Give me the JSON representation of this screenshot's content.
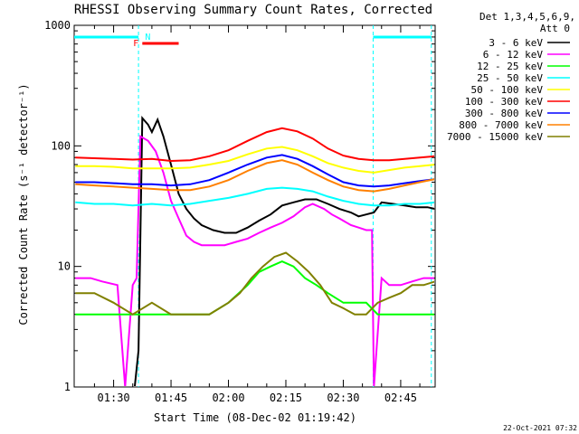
{
  "chart_data": {
    "type": "line",
    "title": "RHESSI Observing Summary Count Rates, Corrected",
    "xlabel": "Start Time (08-Dec-02 01:19:42)",
    "ylabel": "Corrected Count Rate (s⁻¹ detector⁻¹)",
    "yscale": "log",
    "ylim": [
      1,
      1000
    ],
    "xlim_minutes": [
      79.7,
      133.0
    ],
    "x_ticks": [
      {
        "minute": 90,
        "label": "01:30"
      },
      {
        "minute": 105,
        "label": "01:45"
      },
      {
        "minute": 120,
        "label": "02:00"
      },
      {
        "minute": 135,
        "label": "02:15"
      },
      {
        "minute": 150,
        "label": "02:30"
      },
      {
        "minute": 165,
        "label": "02:45"
      }
    ],
    "y_ticks": [
      {
        "value": 1,
        "label": "1"
      },
      {
        "value": 10,
        "label": "10"
      },
      {
        "value": 100,
        "label": "100"
      },
      {
        "value": 1000,
        "label": "1000"
      }
    ],
    "legend_header": [
      "Det 1,3,4,5,6,9,",
      "Att 0"
    ],
    "legend_position": "right",
    "timestamp": "22-Oct-2021 07:32",
    "flags": [
      {
        "label": "F",
        "color": "#ff0000"
      },
      {
        "label": "N",
        "color": "#00ffff"
      }
    ],
    "series": [
      {
        "name": "3 - 6 keV",
        "color": "#000000",
        "points": [
          [
            95.5,
            1
          ],
          [
            96.5,
            2
          ],
          [
            97.5,
            170
          ],
          [
            99,
            150
          ],
          [
            100,
            130
          ],
          [
            101.5,
            165
          ],
          [
            103,
            120
          ],
          [
            105,
            70
          ],
          [
            107,
            40
          ],
          [
            109,
            30
          ],
          [
            111,
            25
          ],
          [
            113,
            22
          ],
          [
            116,
            20
          ],
          [
            119,
            19
          ],
          [
            122,
            19
          ],
          [
            125,
            21
          ],
          [
            128,
            24
          ],
          [
            131,
            27
          ],
          [
            134,
            32
          ],
          [
            137,
            34
          ],
          [
            140,
            36
          ],
          [
            143,
            36
          ],
          [
            146,
            33
          ],
          [
            149,
            30
          ],
          [
            152,
            28
          ],
          [
            154,
            26
          ],
          [
            156,
            27
          ],
          [
            158,
            28
          ],
          [
            160,
            34
          ],
          [
            163,
            33
          ],
          [
            166,
            32
          ],
          [
            169,
            31
          ],
          [
            172,
            31
          ],
          [
            174,
            30
          ]
        ]
      },
      {
        "name": "6 - 12 keV",
        "color": "#ff00ff",
        "points": [
          [
            80,
            8
          ],
          [
            84,
            8
          ],
          [
            87,
            7.5
          ],
          [
            91,
            7
          ],
          [
            93,
            1
          ],
          [
            95,
            7
          ],
          [
            96,
            8
          ],
          [
            97,
            120
          ],
          [
            99,
            110
          ],
          [
            101,
            90
          ],
          [
            103,
            60
          ],
          [
            105,
            35
          ],
          [
            107,
            25
          ],
          [
            109,
            18
          ],
          [
            111,
            16
          ],
          [
            113,
            15
          ],
          [
            116,
            15
          ],
          [
            119,
            15
          ],
          [
            122,
            16
          ],
          [
            125,
            17
          ],
          [
            128,
            19
          ],
          [
            131,
            21
          ],
          [
            134,
            23
          ],
          [
            137,
            26
          ],
          [
            140,
            31
          ],
          [
            142,
            33
          ],
          [
            145,
            30
          ],
          [
            147,
            27
          ],
          [
            149,
            25
          ],
          [
            152,
            22
          ],
          [
            154,
            21
          ],
          [
            156,
            20
          ],
          [
            157.5,
            20
          ],
          [
            158,
            1
          ],
          [
            160,
            8
          ],
          [
            162,
            7
          ],
          [
            165,
            7
          ],
          [
            168,
            7.5
          ],
          [
            171,
            8
          ],
          [
            174,
            8
          ]
        ]
      },
      {
        "name": "12 - 25 keV",
        "color": "#00ff00",
        "points": [
          [
            80,
            4
          ],
          [
            85,
            4
          ],
          [
            90,
            4
          ],
          [
            95,
            4
          ],
          [
            100,
            4
          ],
          [
            105,
            4
          ],
          [
            110,
            4
          ],
          [
            115,
            4
          ],
          [
            120,
            5
          ],
          [
            125,
            7
          ],
          [
            128,
            9
          ],
          [
            131,
            10
          ],
          [
            134,
            11
          ],
          [
            137,
            10
          ],
          [
            140,
            8
          ],
          [
            143,
            7
          ],
          [
            146,
            6
          ],
          [
            150,
            5
          ],
          [
            153,
            5
          ],
          [
            156,
            5
          ],
          [
            159,
            4
          ],
          [
            162,
            4
          ],
          [
            165,
            4
          ],
          [
            168,
            4
          ],
          [
            171,
            4
          ],
          [
            174,
            4
          ]
        ]
      },
      {
        "name": "25 - 50 keV",
        "color": "#00ffff",
        "points": [
          [
            80,
            34
          ],
          [
            85,
            33
          ],
          [
            90,
            33
          ],
          [
            95,
            32
          ],
          [
            100,
            33
          ],
          [
            105,
            32
          ],
          [
            110,
            33
          ],
          [
            115,
            35
          ],
          [
            120,
            37
          ],
          [
            125,
            40
          ],
          [
            130,
            44
          ],
          [
            134,
            45
          ],
          [
            138,
            44
          ],
          [
            142,
            42
          ],
          [
            146,
            38
          ],
          [
            150,
            35
          ],
          [
            154,
            33
          ],
          [
            158,
            32
          ],
          [
            162,
            32
          ],
          [
            166,
            33
          ],
          [
            170,
            33
          ],
          [
            174,
            34
          ]
        ]
      },
      {
        "name": "50 - 100 keV",
        "color": "#ffff00",
        "points": [
          [
            80,
            68
          ],
          [
            85,
            68
          ],
          [
            90,
            67
          ],
          [
            95,
            65
          ],
          [
            100,
            65
          ],
          [
            105,
            65
          ],
          [
            110,
            66
          ],
          [
            115,
            70
          ],
          [
            120,
            75
          ],
          [
            125,
            85
          ],
          [
            130,
            95
          ],
          [
            134,
            98
          ],
          [
            138,
            92
          ],
          [
            142,
            82
          ],
          [
            146,
            72
          ],
          [
            150,
            66
          ],
          [
            154,
            62
          ],
          [
            158,
            60
          ],
          [
            162,
            63
          ],
          [
            166,
            66
          ],
          [
            170,
            68
          ],
          [
            174,
            70
          ]
        ]
      },
      {
        "name": "100 - 300 keV",
        "color": "#ff0000",
        "points": [
          [
            80,
            80
          ],
          [
            85,
            79
          ],
          [
            90,
            78
          ],
          [
            95,
            77
          ],
          [
            100,
            78
          ],
          [
            105,
            75
          ],
          [
            110,
            76
          ],
          [
            115,
            82
          ],
          [
            120,
            92
          ],
          [
            125,
            110
          ],
          [
            130,
            130
          ],
          [
            134,
            140
          ],
          [
            138,
            132
          ],
          [
            142,
            115
          ],
          [
            146,
            95
          ],
          [
            150,
            83
          ],
          [
            154,
            78
          ],
          [
            158,
            76
          ],
          [
            162,
            76
          ],
          [
            166,
            78
          ],
          [
            170,
            80
          ],
          [
            174,
            82
          ]
        ]
      },
      {
        "name": "300 - 800 keV",
        "color": "#0000ff",
        "points": [
          [
            80,
            50
          ],
          [
            85,
            50
          ],
          [
            90,
            49
          ],
          [
            95,
            48
          ],
          [
            100,
            48
          ],
          [
            105,
            47
          ],
          [
            110,
            48
          ],
          [
            115,
            52
          ],
          [
            120,
            60
          ],
          [
            125,
            70
          ],
          [
            130,
            80
          ],
          [
            134,
            84
          ],
          [
            138,
            78
          ],
          [
            142,
            68
          ],
          [
            146,
            58
          ],
          [
            150,
            50
          ],
          [
            154,
            47
          ],
          [
            158,
            46
          ],
          [
            162,
            47
          ],
          [
            166,
            49
          ],
          [
            170,
            51
          ],
          [
            174,
            53
          ]
        ]
      },
      {
        "name": "800 - 7000 keV",
        "color": "#ff8000",
        "points": [
          [
            80,
            48
          ],
          [
            85,
            47
          ],
          [
            90,
            46
          ],
          [
            95,
            45
          ],
          [
            100,
            44
          ],
          [
            105,
            43
          ],
          [
            110,
            43
          ],
          [
            115,
            46
          ],
          [
            120,
            52
          ],
          [
            125,
            62
          ],
          [
            130,
            72
          ],
          [
            134,
            76
          ],
          [
            138,
            70
          ],
          [
            142,
            60
          ],
          [
            146,
            52
          ],
          [
            150,
            46
          ],
          [
            154,
            43
          ],
          [
            158,
            42
          ],
          [
            162,
            44
          ],
          [
            166,
            47
          ],
          [
            170,
            50
          ],
          [
            174,
            53
          ]
        ]
      },
      {
        "name": "7000 - 15000 keV",
        "color": "#808000",
        "points": [
          [
            80,
            6
          ],
          [
            85,
            6
          ],
          [
            90,
            5
          ],
          [
            95,
            4
          ],
          [
            100,
            5
          ],
          [
            105,
            4
          ],
          [
            110,
            4
          ],
          [
            115,
            4
          ],
          [
            120,
            5
          ],
          [
            123,
            6
          ],
          [
            126,
            8
          ],
          [
            129,
            10
          ],
          [
            132,
            12
          ],
          [
            135,
            13
          ],
          [
            138,
            11
          ],
          [
            141,
            9
          ],
          [
            144,
            7
          ],
          [
            147,
            5
          ],
          [
            150,
            4.5
          ],
          [
            153,
            4
          ],
          [
            156,
            4
          ],
          [
            159,
            5
          ],
          [
            162,
            5.5
          ],
          [
            165,
            6
          ],
          [
            168,
            7
          ],
          [
            171,
            7
          ],
          [
            174,
            7.5
          ]
        ]
      }
    ]
  }
}
